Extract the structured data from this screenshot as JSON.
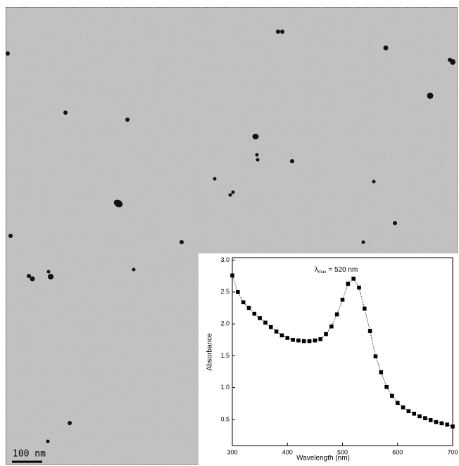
{
  "scale_bar": {
    "label": "100 nm"
  },
  "chart_data": {
    "type": "line",
    "x_label": "Wavelength (nm)",
    "y_label": "Absorbance",
    "annotation": {
      "symbol": "λ",
      "subscript": "max",
      "text": "= 520 nm"
    },
    "x": [
      300,
      310,
      320,
      330,
      340,
      350,
      360,
      370,
      380,
      390,
      400,
      410,
      420,
      430,
      440,
      450,
      460,
      470,
      480,
      490,
      500,
      510,
      520,
      530,
      540,
      550,
      560,
      570,
      580,
      590,
      600,
      610,
      620,
      630,
      640,
      650,
      660,
      670,
      680,
      690,
      700
    ],
    "series": [
      {
        "color": "#000000",
        "values": [
          2.76,
          2.5,
          2.34,
          2.25,
          2.16,
          2.09,
          2.02,
          1.95,
          1.88,
          1.82,
          1.78,
          1.75,
          1.74,
          1.73,
          1.73,
          1.74,
          1.76,
          1.84,
          1.96,
          2.15,
          2.38,
          2.63,
          2.71,
          2.57,
          2.24,
          1.89,
          1.49,
          1.24,
          1.01,
          0.87,
          0.76,
          0.69,
          0.63,
          0.59,
          0.55,
          0.52,
          0.49,
          0.46,
          0.44,
          0.42,
          0.39
        ]
      }
    ],
    "xlim": [
      300,
      700
    ],
    "xticks": [
      300,
      400,
      500,
      600,
      700
    ],
    "ylim": [
      0.09,
      3.04
    ],
    "yticks": [
      0.5,
      {
        "value": 1,
        "label": "1.0"
      },
      1.5,
      {
        "value": 2,
        "label": "2.0"
      },
      2.5,
      {
        "value": 3,
        "label": "3.0"
      }
    ]
  }
}
